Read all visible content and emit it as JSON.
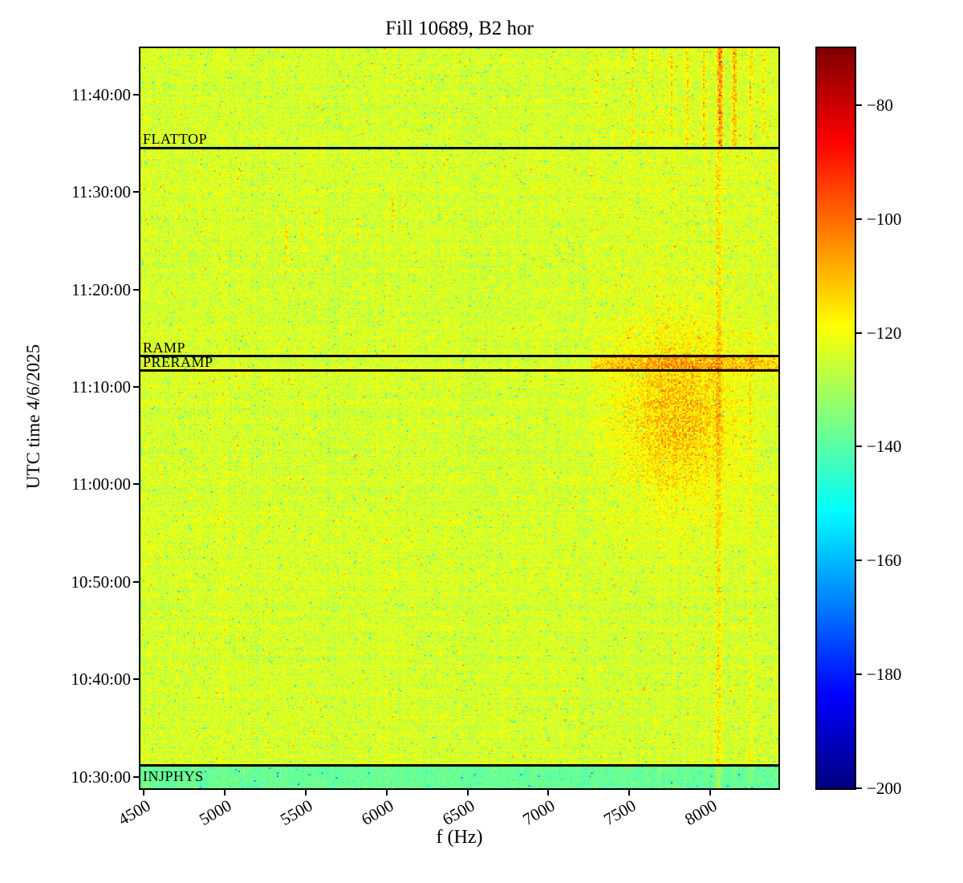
{
  "chart_data": {
    "type": "heatmap",
    "title": "Fill 10689, B2 hor",
    "xlabel": "f (Hz)",
    "ylabel": "UTC time 4/6/2025",
    "x_axis": {
      "unit": "Hz",
      "range": [
        4480,
        8420
      ],
      "ticks": [
        4500,
        5000,
        5500,
        6000,
        6500,
        7000,
        7500,
        8000
      ],
      "tick_labels": [
        "4500",
        "5000",
        "5500",
        "6000",
        "6500",
        "7000",
        "7500",
        "8000"
      ]
    },
    "y_axis": {
      "date": "4/6/2025",
      "start": "10:28:50",
      "end": "11:44:45",
      "ticks": [
        "11:40:00",
        "11:30:00",
        "11:20:00",
        "11:10:00",
        "11:00:00",
        "10:50:00",
        "10:40:00",
        "10:30:00"
      ]
    },
    "colorbar": {
      "colormap": "jet",
      "min": -200,
      "max": -70,
      "ticks": [
        -80,
        -100,
        -120,
        -140,
        -160,
        -180,
        -200
      ],
      "tick_labels": [
        "−80",
        "−100",
        "−120",
        "−140",
        "−160",
        "−180",
        "−200"
      ]
    },
    "annotations": [
      {
        "label": "FLATTOP",
        "time": "11:34:30",
        "label_position": "above"
      },
      {
        "label": "RAMP",
        "time": "11:13:10",
        "label_position": "above"
      },
      {
        "label": "PRERAMP",
        "time": "11:11:40",
        "label_position": "above"
      },
      {
        "label": "INJPHYS",
        "time": "10:31:10",
        "label_position": "below"
      }
    ],
    "heatmap": {
      "seed": 42,
      "base_level_db": -124,
      "noise_spread_db": 7,
      "row_jitter_db": 1.5,
      "col_jitter_db": 1.2,
      "bottom_band": {
        "t_end": "10:31:10",
        "level_db": -138,
        "spread_db": 4
      },
      "blob": {
        "f_center": 7800,
        "t_center": "11:07:00",
        "f_sigma_hz": 360,
        "t_sigma_min": 8.5,
        "amp_db": 15
      },
      "ramp_burst": {
        "f_min": 7260,
        "t_start": "11:11:40",
        "t_end": "11:13:20",
        "amp_db": 12
      },
      "warm_region": {
        "f_min": 7200,
        "t_start": "11:13:00",
        "t_end": "11:44:45",
        "amp_db": 5,
        "density": 0.3
      },
      "streaks": [
        {
          "f": 8050,
          "width_hz": 30,
          "t_start": "10:28:50",
          "t_end": "11:34:30",
          "amp_db": 9
        },
        {
          "f": 8060,
          "width_hz": 28,
          "t_start": "11:34:30",
          "t_end": "11:44:45",
          "amp_db": 22
        },
        {
          "f": 8150,
          "width_hz": 24,
          "t_start": "11:34:30",
          "t_end": "11:44:45",
          "amp_db": 16
        },
        {
          "f": 8250,
          "width_hz": 20,
          "t_start": "10:28:50",
          "t_end": "11:16:00",
          "amp_db": 6
        },
        {
          "f": 8250,
          "width_hz": 18,
          "t_start": "11:34:30",
          "t_end": "11:44:45",
          "amp_db": 11
        },
        {
          "f": 8330,
          "width_hz": 16,
          "t_start": "11:36:00",
          "t_end": "11:44:45",
          "amp_db": 9
        },
        {
          "f": 7960,
          "width_hz": 16,
          "t_start": "11:34:30",
          "t_end": "11:44:45",
          "amp_db": 12
        },
        {
          "f": 7860,
          "width_hz": 16,
          "t_start": "11:34:30",
          "t_end": "11:44:45",
          "amp_db": 11
        },
        {
          "f": 7760,
          "width_hz": 14,
          "t_start": "11:34:30",
          "t_end": "11:44:45",
          "amp_db": 10
        },
        {
          "f": 7640,
          "width_hz": 14,
          "t_start": "11:35:00",
          "t_end": "11:44:45",
          "amp_db": 8
        },
        {
          "f": 7520,
          "width_hz": 14,
          "t_start": "11:34:30",
          "t_end": "11:44:45",
          "amp_db": 8
        },
        {
          "f": 7300,
          "width_hz": 12,
          "t_start": "11:37:00",
          "t_end": "11:44:00",
          "amp_db": 6
        },
        {
          "f": 5380,
          "width_hz": 14,
          "t_start": "11:22:30",
          "t_end": "11:26:30",
          "amp_db": 9
        },
        {
          "f": 5480,
          "width_hz": 12,
          "t_start": "11:23:30",
          "t_end": "11:27:00",
          "amp_db": 8
        },
        {
          "f": 5600,
          "width_hz": 12,
          "t_start": "11:24:00",
          "t_end": "11:28:00",
          "amp_db": 9
        },
        {
          "f": 5700,
          "width_hz": 12,
          "t_start": "11:23:00",
          "t_end": "11:26:00",
          "amp_db": 7
        },
        {
          "f": 5820,
          "width_hz": 12,
          "t_start": "11:25:00",
          "t_end": "11:27:30",
          "amp_db": 7
        },
        {
          "f": 6040,
          "width_hz": 12,
          "t_start": "11:26:00",
          "t_end": "11:29:30",
          "amp_db": 9
        },
        {
          "f": 6120,
          "width_hz": 10,
          "t_start": "11:27:00",
          "t_end": "11:29:00",
          "amp_db": 6
        },
        {
          "f": 4880,
          "width_hz": 12,
          "t_start": "11:35:00",
          "t_end": "11:37:30",
          "amp_db": 6
        }
      ],
      "cold_dots": {
        "prob": 0.015,
        "delta_db": -12,
        "deep_prob": 0.004,
        "deep_delta_db": -24
      },
      "hot_dots": {
        "prob": 0.006,
        "delta_db": 12
      }
    }
  }
}
